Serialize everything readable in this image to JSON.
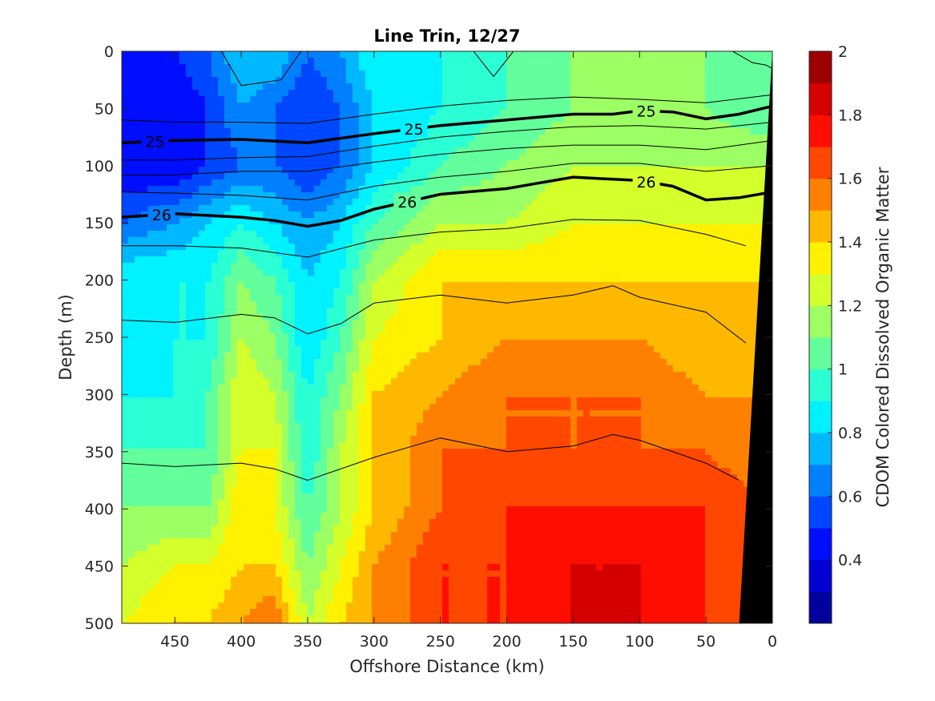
{
  "chart_data": {
    "type": "heatmap",
    "title": "Line Trin, 12/27",
    "xlabel": "Offshore Distance (km)",
    "ylabel": "Depth (m)",
    "colorbar_label": "CDOM Colored Dissolved Organic Matter",
    "xlim": [
      490,
      0
    ],
    "ylim": [
      0,
      500
    ],
    "x_reversed": true,
    "y_reversed": true,
    "clim": [
      0.2,
      2.0
    ],
    "colormap": "jet",
    "x_ticks": [
      "450",
      "400",
      "350",
      "300",
      "250",
      "200",
      "150",
      "100",
      "50",
      "0"
    ],
    "x_tick_values": [
      450,
      400,
      350,
      300,
      250,
      200,
      150,
      100,
      50,
      0
    ],
    "y_ticks": [
      "0",
      "50",
      "100",
      "150",
      "200",
      "250",
      "300",
      "350",
      "400",
      "450",
      "500"
    ],
    "y_tick_values": [
      0,
      50,
      100,
      150,
      200,
      250,
      300,
      350,
      400,
      450,
      500
    ],
    "colorbar_ticks": [
      "0.4",
      "0.6",
      "0.8",
      "1",
      "1.2",
      "1.4",
      "1.6",
      "1.8",
      "2"
    ],
    "colorbar_tick_values": [
      0.4,
      0.6,
      0.8,
      1.0,
      1.2,
      1.4,
      1.6,
      1.8,
      2.0
    ],
    "field_grid": {
      "x": [
        490,
        450,
        425,
        400,
        375,
        350,
        325,
        300,
        250,
        200,
        150,
        100,
        50,
        0
      ],
      "depth": [
        0,
        50,
        100,
        150,
        200,
        250,
        300,
        350,
        400,
        450,
        500
      ],
      "values": [
        [
          0.5,
          0.5,
          0.6,
          0.8,
          0.8,
          0.6,
          0.7,
          0.9,
          0.9,
          1.0,
          1.1,
          1.1,
          1.1,
          1.0
        ],
        [
          0.4,
          0.4,
          0.5,
          0.7,
          0.6,
          0.5,
          0.6,
          0.8,
          0.9,
          1.0,
          1.1,
          1.1,
          1.1,
          1.0
        ],
        [
          0.4,
          0.4,
          0.5,
          0.6,
          0.6,
          0.5,
          0.6,
          0.8,
          1.0,
          1.1,
          1.2,
          1.2,
          1.2,
          1.2
        ],
        [
          0.6,
          0.7,
          0.8,
          0.9,
          0.8,
          0.7,
          0.8,
          1.0,
          1.2,
          1.2,
          1.3,
          1.3,
          1.3,
          1.3
        ],
        [
          0.9,
          0.9,
          0.9,
          1.1,
          1.0,
          0.8,
          0.9,
          1.2,
          1.4,
          1.4,
          1.4,
          1.4,
          1.4,
          1.4
        ],
        [
          0.9,
          0.9,
          0.9,
          1.2,
          1.1,
          0.8,
          1.0,
          1.3,
          1.4,
          1.5,
          1.5,
          1.5,
          1.4,
          1.4
        ],
        [
          0.9,
          0.9,
          1.0,
          1.3,
          1.2,
          0.9,
          1.1,
          1.4,
          1.5,
          1.6,
          1.6,
          1.6,
          1.5,
          1.5
        ],
        [
          1.0,
          1.0,
          1.0,
          1.3,
          1.3,
          0.9,
          1.2,
          1.4,
          1.6,
          1.6,
          1.6,
          1.6,
          1.6,
          1.5
        ],
        [
          1.1,
          1.1,
          1.1,
          1.4,
          1.3,
          1.0,
          1.2,
          1.4,
          1.6,
          1.7,
          1.7,
          1.7,
          1.7,
          1.6
        ],
        [
          1.2,
          1.3,
          1.3,
          1.4,
          1.4,
          1.1,
          1.3,
          1.5,
          1.7,
          1.7,
          1.8,
          1.8,
          1.7,
          1.6
        ],
        [
          1.3,
          1.4,
          1.4,
          1.5,
          1.6,
          1.2,
          1.4,
          1.5,
          1.7,
          1.7,
          1.8,
          1.8,
          1.7,
          1.6
        ]
      ]
    },
    "contours": {
      "labeled": [
        {
          "label": "25",
          "x": [
            490,
            450,
            400,
            350,
            300,
            250,
            200,
            150,
            120,
            100,
            75,
            50,
            25,
            0
          ],
          "depth": [
            80,
            78,
            77,
            80,
            72,
            65,
            60,
            55,
            55,
            52,
            53,
            59,
            55,
            48
          ]
        },
        {
          "label": "26",
          "x": [
            490,
            450,
            400,
            375,
            350,
            325,
            300,
            250,
            200,
            175,
            150,
            100,
            75,
            50,
            25,
            0
          ],
          "depth": [
            145,
            142,
            145,
            148,
            153,
            148,
            138,
            125,
            120,
            115,
            110,
            113,
            118,
            130,
            128,
            123
          ]
        }
      ],
      "thin": [
        {
          "x": [
            490,
            450,
            400,
            350,
            300,
            250,
            200,
            150,
            100,
            50,
            0
          ],
          "depth": [
            60,
            62,
            62,
            63,
            55,
            48,
            43,
            40,
            42,
            45,
            38
          ]
        },
        {
          "x": [
            490,
            450,
            400,
            350,
            300,
            250,
            200,
            150,
            100,
            50,
            0
          ],
          "depth": [
            95,
            95,
            93,
            92,
            83,
            75,
            70,
            66,
            65,
            68,
            62
          ]
        },
        {
          "x": [
            490,
            450,
            400,
            350,
            300,
            250,
            200,
            150,
            100,
            50,
            0
          ],
          "depth": [
            108,
            108,
            105,
            105,
            97,
            90,
            85,
            82,
            82,
            86,
            78
          ]
        },
        {
          "x": [
            490,
            450,
            400,
            350,
            300,
            250,
            200,
            150,
            100,
            50,
            0
          ],
          "depth": [
            123,
            124,
            126,
            130,
            118,
            110,
            105,
            98,
            98,
            105,
            100
          ]
        },
        {
          "x": [
            490,
            450,
            400,
            350,
            300,
            250,
            200,
            150,
            100,
            50,
            20
          ],
          "depth": [
            170,
            170,
            172,
            180,
            165,
            158,
            155,
            147,
            148,
            160,
            170
          ]
        },
        {
          "x": [
            490,
            450,
            400,
            375,
            350,
            325,
            300,
            250,
            200,
            150,
            120,
            100,
            50,
            20
          ],
          "depth": [
            235,
            237,
            230,
            233,
            247,
            238,
            220,
            213,
            220,
            213,
            205,
            215,
            228,
            255
          ]
        },
        {
          "x": [
            490,
            450,
            400,
            375,
            350,
            300,
            250,
            200,
            150,
            120,
            100,
            50,
            25
          ],
          "depth": [
            360,
            363,
            360,
            365,
            375,
            355,
            338,
            350,
            345,
            335,
            340,
            360,
            375
          ]
        },
        {
          "x": [
            415,
            400,
            370,
            355
          ],
          "depth": [
            0,
            30,
            25,
            0
          ]
        },
        {
          "x": [
            225,
            210,
            195
          ],
          "depth": [
            0,
            22,
            0
          ]
        },
        {
          "x": [
            30,
            15,
            5,
            0
          ],
          "depth": [
            0,
            10,
            12,
            15
          ]
        }
      ]
    },
    "bottom_mask": {
      "x": [
        0,
        25,
        0
      ],
      "depth": [
        0,
        500,
        500
      ],
      "color": "#000000"
    }
  }
}
